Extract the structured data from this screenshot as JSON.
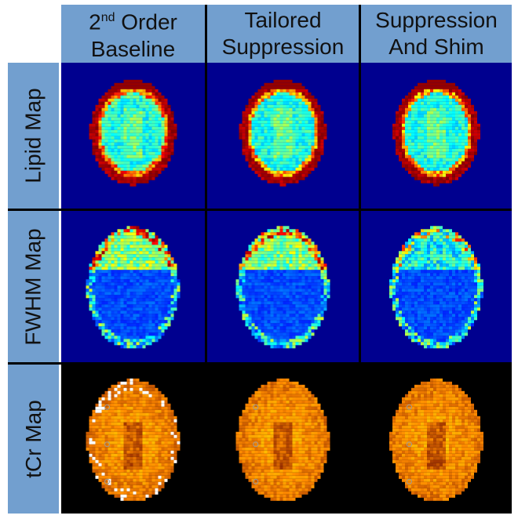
{
  "columns": [
    {
      "title_main": "2",
      "title_sup": "nd",
      "title_rest": " Order",
      "title_line2": "Baseline"
    },
    {
      "title_line1": "Tailored",
      "title_line2": "Suppression"
    },
    {
      "title_line1": "Suppression",
      "title_line2": "And Shim"
    }
  ],
  "rows": [
    {
      "label": "Lipid Map"
    },
    {
      "label": "FWHM Map"
    },
    {
      "label": "tCr Map"
    }
  ],
  "colors": {
    "header_bg": "#729fcf",
    "map_bg_blue": "#00008f",
    "map_bg_black": "#000000"
  }
}
